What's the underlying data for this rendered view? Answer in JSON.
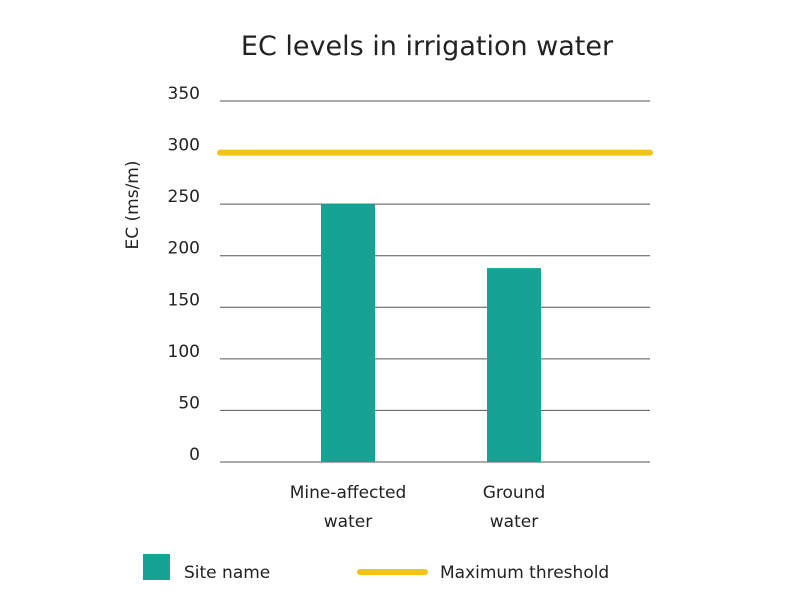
{
  "chart_data": {
    "type": "bar",
    "title": "EC levels in irrigation water",
    "ylabel": "EC (ms/m)",
    "xlabel": "",
    "ylim": [
      0,
      350
    ],
    "yticks": [
      0,
      50,
      100,
      150,
      200,
      250,
      300,
      350
    ],
    "grid": true,
    "categories": [
      [
        "Mine-affected",
        "water"
      ],
      [
        "Ground",
        "water"
      ]
    ],
    "series": [
      {
        "name": "Site name",
        "values": [
          250,
          188
        ],
        "color": "#16a394"
      }
    ],
    "threshold": {
      "name": "Maximum threshold",
      "value": 300,
      "color": "#f2c417"
    },
    "legend_position": "bottom"
  }
}
